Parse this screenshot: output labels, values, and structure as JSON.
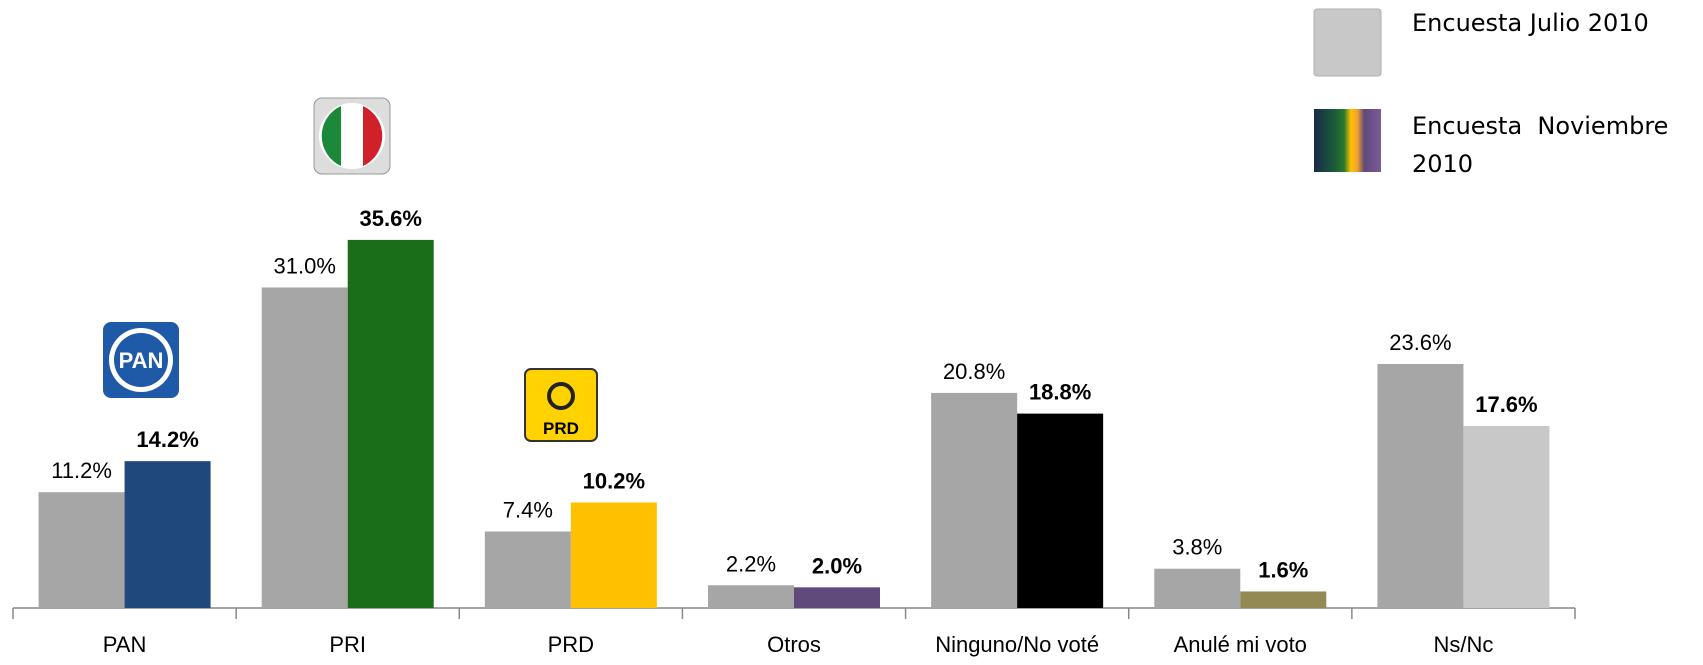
{
  "chart_data": {
    "type": "bar",
    "categories": [
      "PAN",
      "PRI",
      "PRD",
      "Otros",
      "Ninguno/No voté",
      "Anulé mi voto",
      "Ns/Nc"
    ],
    "series": [
      {
        "name": "Encuesta Julio 2010",
        "color": "#a6a6a6",
        "values": [
          11.2,
          31.0,
          7.4,
          2.2,
          20.8,
          3.8,
          23.6
        ],
        "value_labels": [
          "11.2%",
          "31.0%",
          "7.4%",
          "2.2%",
          "20.8%",
          "3.8%",
          "23.6%"
        ]
      },
      {
        "name": "Encuesta  Noviembre 2010",
        "colors": [
          "#1f497d",
          "#1a6e1a",
          "#ffc000",
          "#604a7b",
          "#000000",
          "#938953",
          "#c8c8c8"
        ],
        "values": [
          14.2,
          35.6,
          10.2,
          2.0,
          18.8,
          1.6,
          17.6
        ],
        "value_labels": [
          "14.2%",
          "35.6%",
          "10.2%",
          "2.0%",
          "18.8%",
          "1.6%",
          "17.6%"
        ]
      }
    ],
    "legend": "top-right"
  }
}
